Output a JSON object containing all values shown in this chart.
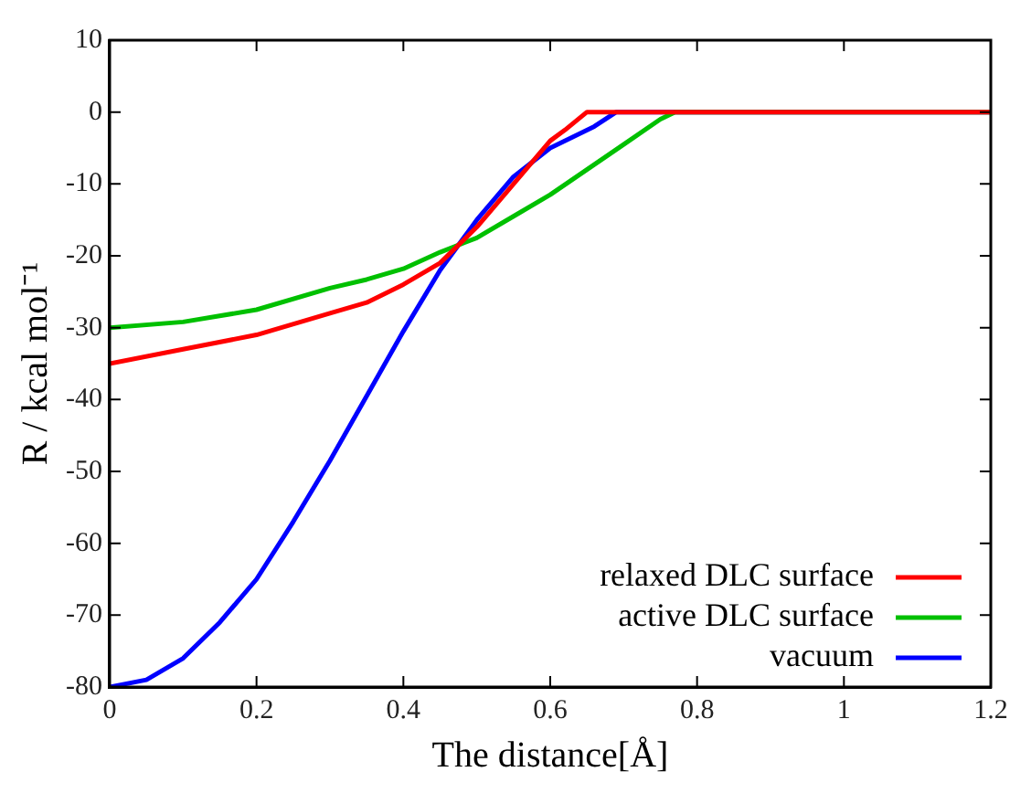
{
  "chart_data": {
    "type": "line",
    "xlabel": "The distance[Å]",
    "ylabel": "R / kcal mol⁻¹",
    "xlim": [
      0,
      1.2
    ],
    "xticks": [
      0,
      0.2,
      0.4,
      0.6,
      0.8,
      1,
      1.2
    ],
    "ylim": [
      -80,
      10
    ],
    "yticks": [
      -80,
      -70,
      -60,
      -50,
      -40,
      -30,
      -20,
      -10,
      0,
      10
    ],
    "grid": false,
    "legend": "bottom right",
    "marker": "none",
    "line_style": "solid",
    "series": [
      {
        "name": "relaxed DLC surface",
        "color": "#ff0000",
        "x": [
          0,
          0.1,
          0.2,
          0.3,
          0.35,
          0.4,
          0.45,
          0.5,
          0.55,
          0.6,
          0.62,
          0.65,
          1.2
        ],
        "values": [
          -35,
          -33,
          -31,
          -28,
          -26.5,
          -24,
          -21,
          -16,
          -10,
          -4,
          -2.5,
          0,
          0
        ]
      },
      {
        "name": "active DLC surface",
        "color": "#00c000",
        "x": [
          0,
          0.1,
          0.2,
          0.3,
          0.35,
          0.4,
          0.45,
          0.5,
          0.55,
          0.6,
          0.65,
          0.7,
          0.75,
          0.77,
          1.2
        ],
        "values": [
          -30,
          -29.2,
          -27.5,
          -24.5,
          -23.3,
          -21.8,
          -19.5,
          -17.5,
          -14.5,
          -11.5,
          -8,
          -4.5,
          -1,
          0,
          0
        ]
      },
      {
        "name": "vacuum",
        "color": "#0000ff",
        "x": [
          0,
          0.05,
          0.1,
          0.15,
          0.2,
          0.25,
          0.3,
          0.35,
          0.4,
          0.45,
          0.5,
          0.55,
          0.6,
          0.63,
          0.66,
          0.69,
          1.2
        ],
        "values": [
          -80,
          -79,
          -76,
          -71,
          -65,
          -57,
          -48.5,
          -39.5,
          -30.5,
          -22,
          -15,
          -9,
          -5,
          -3.5,
          -2,
          0,
          0
        ]
      }
    ]
  }
}
